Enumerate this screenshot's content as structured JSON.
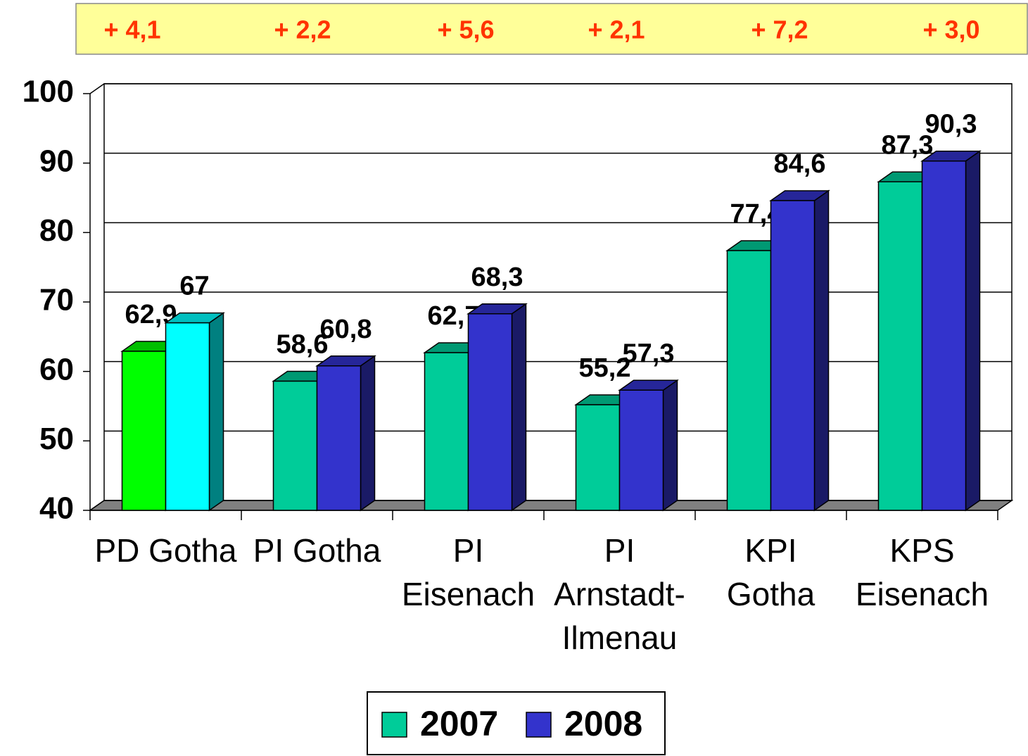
{
  "chart_data": {
    "type": "bar3d",
    "annotations": [
      "+ 4,1",
      "+ 2,2",
      "+ 5,6",
      "+ 2,1",
      "+ 7,2",
      "+ 3,0"
    ],
    "categories": [
      "PD Gotha",
      "PI Gotha",
      "PI\nEisenach",
      "PI\nArnstadt-\nIlmenau",
      "KPI\nGotha",
      "KPS\nEisenach"
    ],
    "series": [
      {
        "name": "2007",
        "color": "#00cc99",
        "values": [
          62.9,
          58.6,
          62.7,
          55.2,
          77.4,
          87.3
        ],
        "value_labels": [
          "62,9",
          "58,6",
          "62,7",
          "55,2",
          "77,4",
          "87,3"
        ]
      },
      {
        "name": "2008",
        "color": "#3333cc",
        "values": [
          67,
          60.8,
          68.3,
          57.3,
          84.6,
          90.3
        ],
        "value_labels": [
          "67",
          "60,8",
          "68,3",
          "57,3",
          "84,6",
          "90,3"
        ]
      }
    ],
    "highlight_category": 0,
    "highlight_colors": [
      "#00ff00",
      "#00ffff"
    ],
    "ylim": [
      40,
      100
    ],
    "yticks": [
      40,
      50,
      60,
      70,
      80,
      90,
      100
    ],
    "grid": true,
    "legend": "bottom"
  }
}
